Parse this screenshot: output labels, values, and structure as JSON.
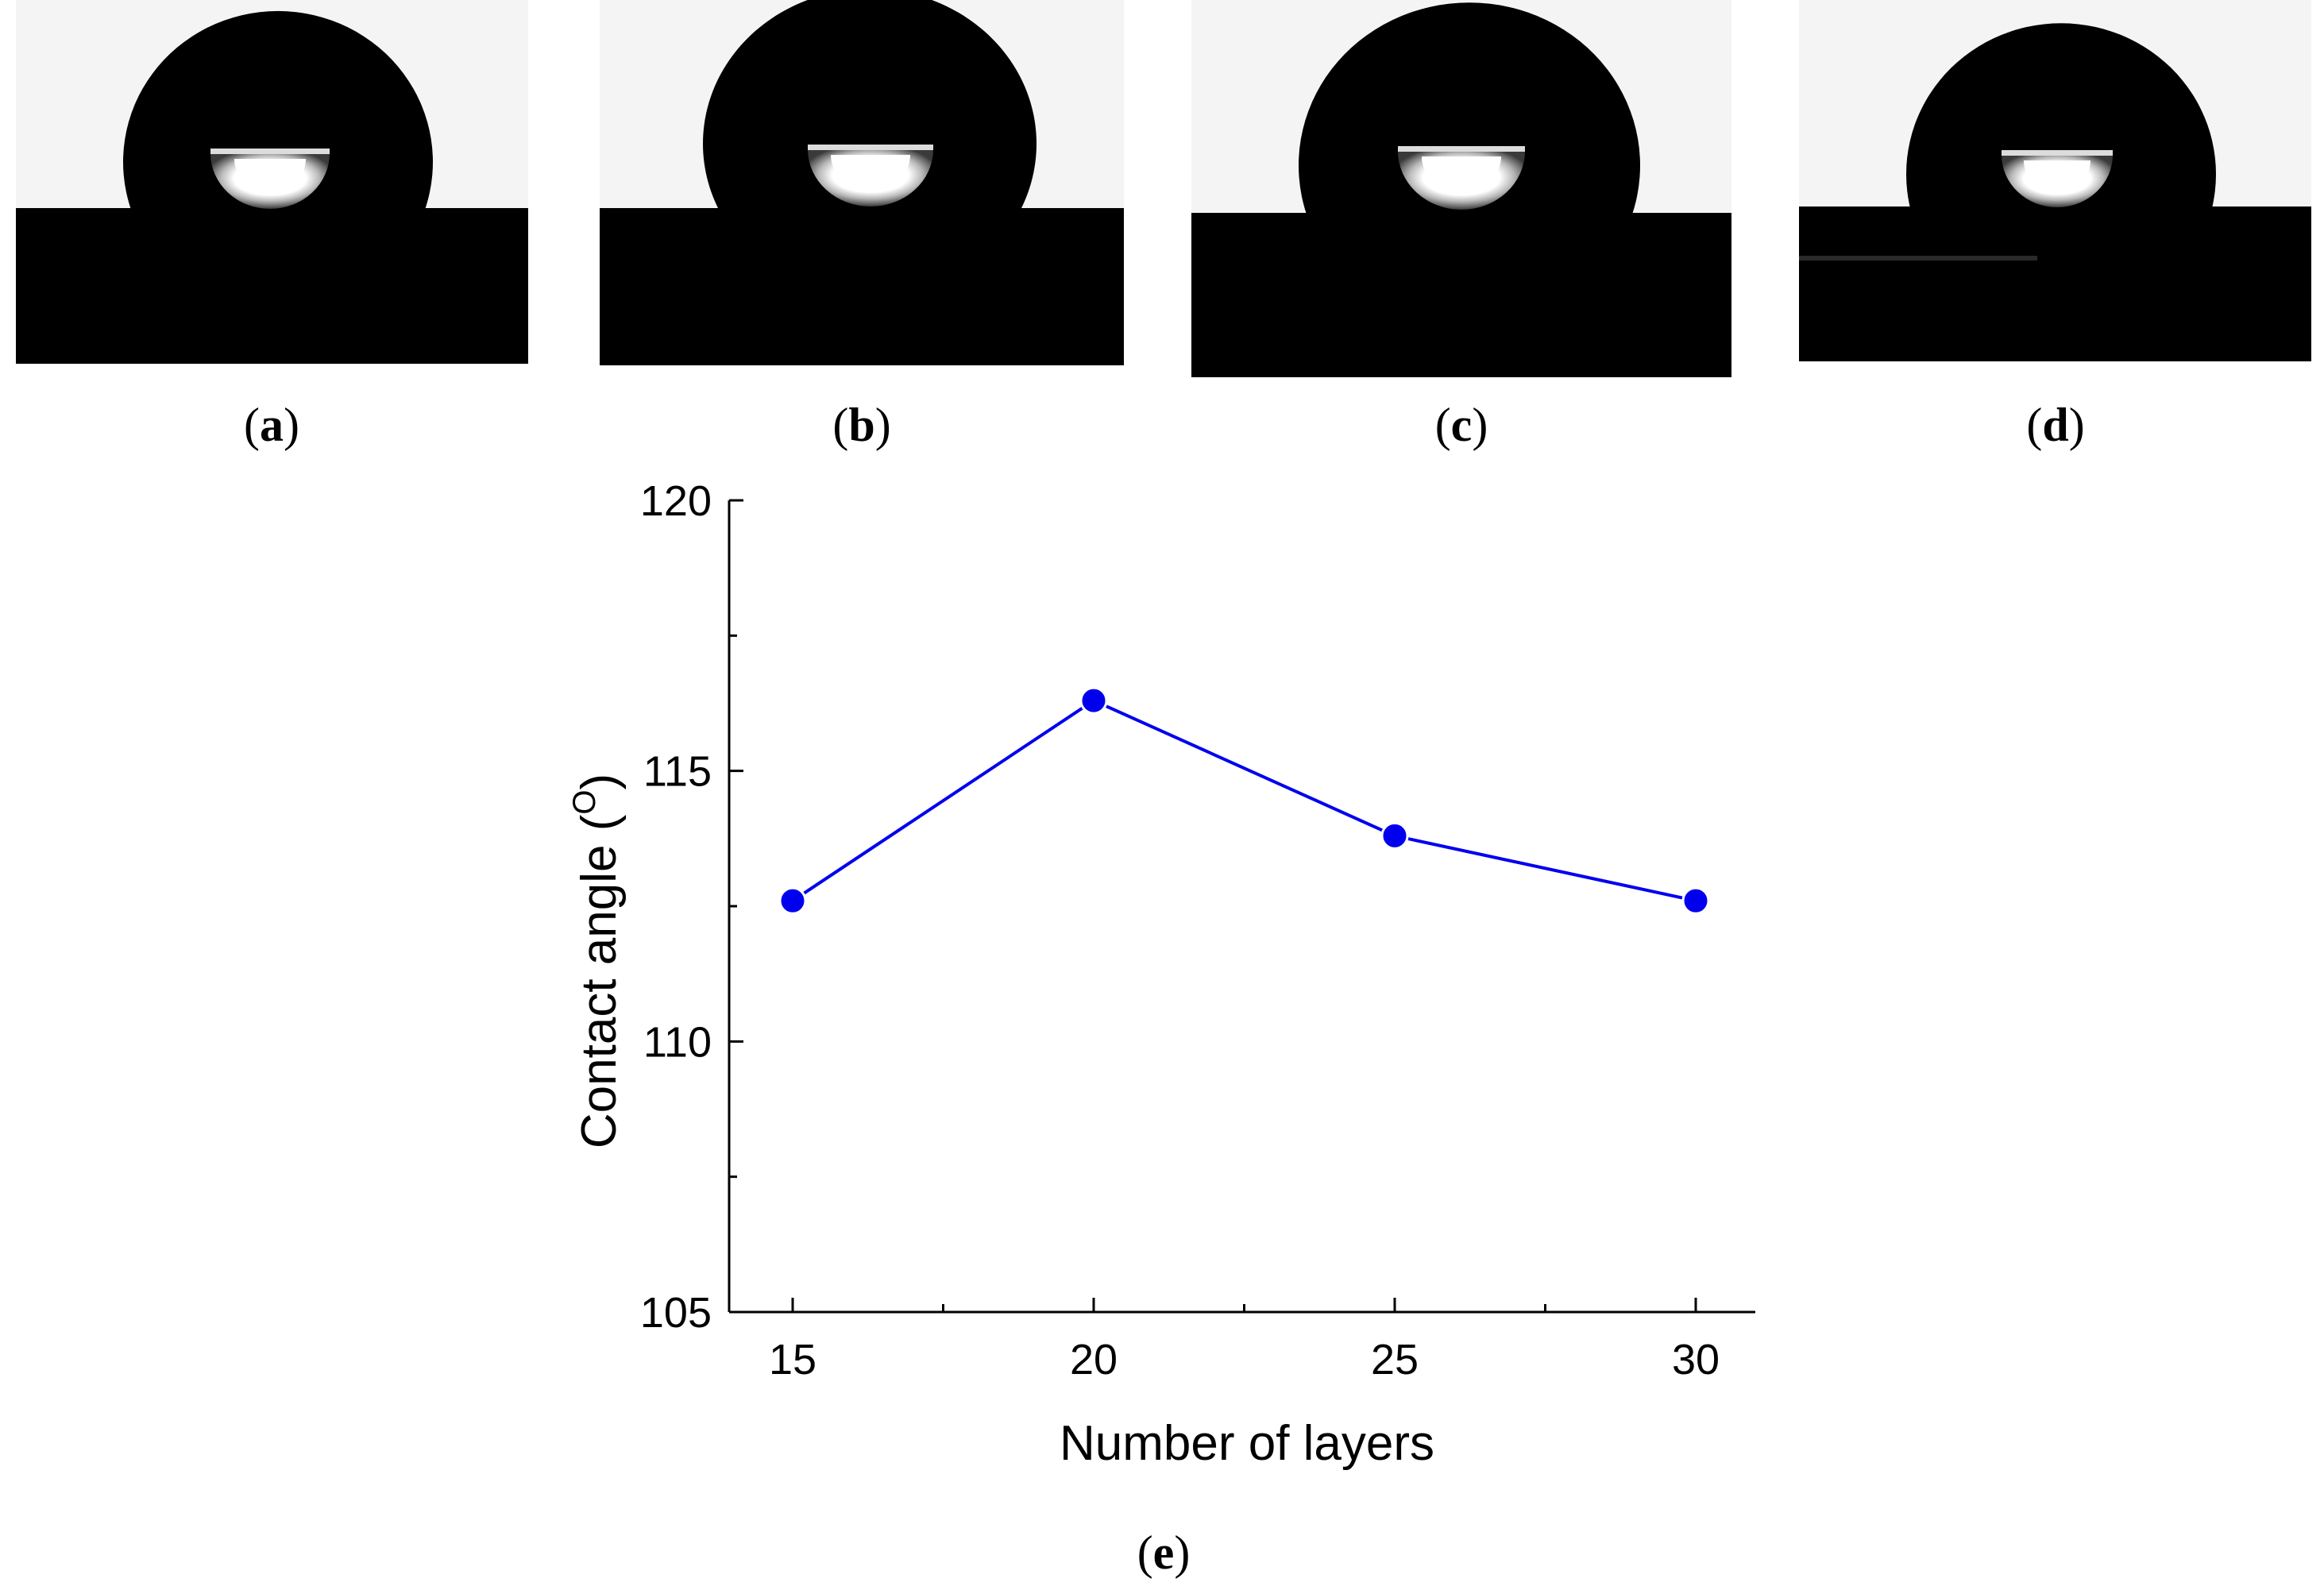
{
  "panels": [
    {
      "id": "a",
      "label_open": "(",
      "label_letter": "a",
      "label_close": ")"
    },
    {
      "id": "b",
      "label_open": "(",
      "label_letter": "b",
      "label_close": ")"
    },
    {
      "id": "c",
      "label_open": "(",
      "label_letter": "c",
      "label_close": ")"
    },
    {
      "id": "d",
      "label_open": "(",
      "label_letter": "d",
      "label_close": ")"
    }
  ],
  "chart_panel_label": {
    "open": "(",
    "letter": "e",
    "close": ")"
  },
  "colors": {
    "series": "#0000ee",
    "photo_background": "#f5f5f5",
    "droplet": "#000000",
    "axis": "#000000"
  },
  "chart_data": {
    "type": "line",
    "title": "",
    "xlabel": "Number of layers",
    "ylabel_main": "Contact angle (",
    "ylabel_sup": "O",
    "ylabel_close": ")",
    "x": [
      15,
      20,
      25,
      30
    ],
    "series": [
      {
        "values": [
          112.6,
          116.3,
          113.8,
          112.6
        ]
      }
    ],
    "xlim": [
      14,
      31
    ],
    "ylim": [
      105,
      120
    ],
    "xticks": [
      15,
      20,
      25,
      30
    ],
    "xticks_minor": [
      17.5,
      22.5,
      27.5
    ],
    "yticks": [
      105,
      110,
      115,
      120
    ],
    "yticks_minor": [
      107.5,
      112.5,
      117.5
    ],
    "xtick_labels": [
      "15",
      "20",
      "25",
      "30"
    ],
    "ytick_labels": [
      "105",
      "110",
      "115",
      "120"
    ],
    "grid": false,
    "legend": "none"
  }
}
